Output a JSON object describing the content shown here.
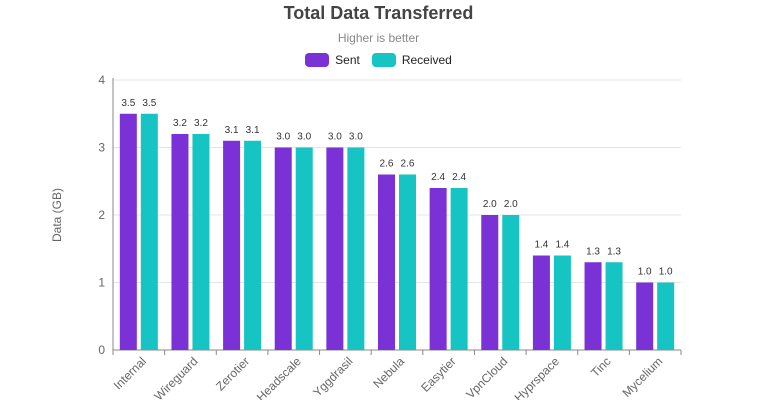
{
  "chart_data": {
    "type": "bar",
    "title": "Total Data Transferred",
    "subtitle": "Higher is better",
    "ylabel": "Data (GB)",
    "xlabel": "",
    "ylim": [
      0,
      4
    ],
    "yticks": [
      0,
      1,
      2,
      3,
      4
    ],
    "grid": true,
    "legend_position": "top-center",
    "categories": [
      "Internal",
      "Wireguard",
      "Zerotier",
      "Headscale",
      "Yggdrasil",
      "Nebula",
      "Easytier",
      "VpnCloud",
      "Hyprspace",
      "Tinc",
      "Mycelium"
    ],
    "series": [
      {
        "name": "Sent",
        "color": "#7a32d6",
        "values": [
          3.5,
          3.2,
          3.1,
          3.0,
          3.0,
          2.6,
          2.4,
          2.0,
          1.4,
          1.3,
          1.0
        ]
      },
      {
        "name": "Received",
        "color": "#16c4c4",
        "values": [
          3.5,
          3.2,
          3.1,
          3.0,
          3.0,
          2.6,
          2.4,
          2.0,
          1.4,
          1.3,
          1.0
        ]
      }
    ]
  }
}
